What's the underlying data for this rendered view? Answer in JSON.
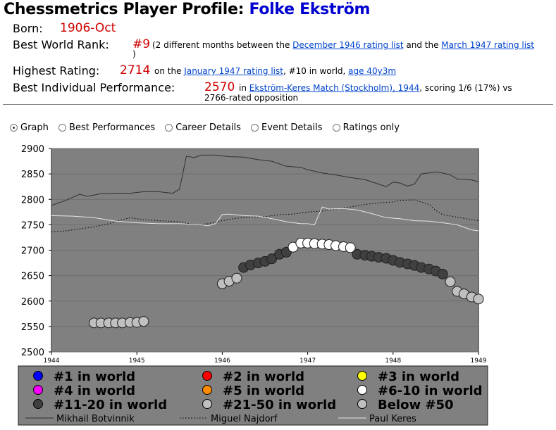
{
  "header": {
    "title_prefix": "Chessmetrics Player Profile: ",
    "player_name": "Folke Ekström"
  },
  "profile": {
    "born_label": "Born:",
    "born_value": "1906-Oct",
    "rank_label": "Best World Rank:",
    "rank_value": "#9",
    "rank_text1": "(2 different months between the",
    "rank_link1": "December 1946 rating list",
    "rank_text2": "and the",
    "rank_link2": "March 1947 rating list",
    "rank_close": ")",
    "rating_label": "Highest Rating:",
    "rating_value": "2714",
    "rating_text1": "on the",
    "rating_link1": "January 1947 rating list",
    "rating_text2": ", #10 in world,",
    "rating_link2": "age 40y3m",
    "perf_label": "Best Individual Performance:",
    "perf_value": "2570",
    "perf_text1": "in",
    "perf_link": "Ekström-Keres Match (Stockholm), 1944",
    "perf_text2": ", scoring 1/6 (17%) vs",
    "perf_text3": "2766-rated opposition"
  },
  "tabs": [
    {
      "label": "Graph",
      "selected": true
    },
    {
      "label": "Best Performances",
      "selected": false
    },
    {
      "label": "Career Details",
      "selected": false
    },
    {
      "label": "Event Details",
      "selected": false
    },
    {
      "label": "Ratings only",
      "selected": false
    }
  ],
  "colors": {
    "plot_bg": "#808080",
    "legend_bg": "#808080",
    "rank_1": "#0000ff",
    "rank_2": "#ff0000",
    "rank_3": "#ffff00",
    "rank_4": "#ff00ff",
    "rank_5": "#ff8c00",
    "rank_6_10": "#ffffff",
    "rank_11_20": "#404040",
    "rank_21_50": "#c0c0c0",
    "rank_below_50": "#c0c0c0"
  },
  "chart_data": {
    "type": "scatter",
    "xlim": [
      1944,
      1949
    ],
    "ylim": [
      2500,
      2900
    ],
    "x_ticks": [
      "1944",
      "1945",
      "1946",
      "1947",
      "1948",
      "1949"
    ],
    "y_ticks": [
      "2500",
      "2550",
      "2600",
      "2650",
      "2700",
      "2750",
      "2800",
      "2850",
      "2900"
    ],
    "grid": true,
    "points": [
      {
        "x": 1944.5,
        "y": 2557,
        "cls": "21-50"
      },
      {
        "x": 1944.58,
        "y": 2557,
        "cls": "21-50"
      },
      {
        "x": 1944.67,
        "y": 2557,
        "cls": "21-50"
      },
      {
        "x": 1944.75,
        "y": 2557,
        "cls": "21-50"
      },
      {
        "x": 1944.83,
        "y": 2557,
        "cls": "21-50"
      },
      {
        "x": 1944.92,
        "y": 2558,
        "cls": "21-50"
      },
      {
        "x": 1945.0,
        "y": 2558,
        "cls": "21-50"
      },
      {
        "x": 1945.08,
        "y": 2560,
        "cls": "21-50"
      },
      {
        "x": 1946.0,
        "y": 2634,
        "cls": "21-50"
      },
      {
        "x": 1946.08,
        "y": 2639,
        "cls": "21-50"
      },
      {
        "x": 1946.17,
        "y": 2645,
        "cls": "21-50"
      },
      {
        "x": 1946.25,
        "y": 2666,
        "cls": "11-20"
      },
      {
        "x": 1946.33,
        "y": 2671,
        "cls": "11-20"
      },
      {
        "x": 1946.42,
        "y": 2675,
        "cls": "11-20"
      },
      {
        "x": 1946.5,
        "y": 2678,
        "cls": "11-20"
      },
      {
        "x": 1946.58,
        "y": 2683,
        "cls": "11-20"
      },
      {
        "x": 1946.67,
        "y": 2692,
        "cls": "11-20"
      },
      {
        "x": 1946.75,
        "y": 2696,
        "cls": "11-20"
      },
      {
        "x": 1946.83,
        "y": 2706,
        "cls": "6-10"
      },
      {
        "x": 1946.92,
        "y": 2714,
        "cls": "6-10"
      },
      {
        "x": 1947.0,
        "y": 2714,
        "cls": "6-10"
      },
      {
        "x": 1947.08,
        "y": 2713,
        "cls": "6-10"
      },
      {
        "x": 1947.17,
        "y": 2712,
        "cls": "6-10"
      },
      {
        "x": 1947.25,
        "y": 2711,
        "cls": "6-10"
      },
      {
        "x": 1947.33,
        "y": 2709,
        "cls": "6-10"
      },
      {
        "x": 1947.42,
        "y": 2707,
        "cls": "6-10"
      },
      {
        "x": 1947.5,
        "y": 2705,
        "cls": "6-10"
      },
      {
        "x": 1947.58,
        "y": 2692,
        "cls": "11-20"
      },
      {
        "x": 1947.67,
        "y": 2690,
        "cls": "11-20"
      },
      {
        "x": 1947.75,
        "y": 2688,
        "cls": "11-20"
      },
      {
        "x": 1947.83,
        "y": 2686,
        "cls": "11-20"
      },
      {
        "x": 1947.92,
        "y": 2684,
        "cls": "11-20"
      },
      {
        "x": 1948.0,
        "y": 2680,
        "cls": "11-20"
      },
      {
        "x": 1948.08,
        "y": 2676,
        "cls": "11-20"
      },
      {
        "x": 1948.17,
        "y": 2673,
        "cls": "11-20"
      },
      {
        "x": 1948.25,
        "y": 2670,
        "cls": "11-20"
      },
      {
        "x": 1948.33,
        "y": 2666,
        "cls": "11-20"
      },
      {
        "x": 1948.42,
        "y": 2663,
        "cls": "11-20"
      },
      {
        "x": 1948.5,
        "y": 2659,
        "cls": "11-20"
      },
      {
        "x": 1948.58,
        "y": 2653,
        "cls": "11-20"
      },
      {
        "x": 1948.67,
        "y": 2638,
        "cls": "21-50"
      },
      {
        "x": 1948.75,
        "y": 2619,
        "cls": "21-50"
      },
      {
        "x": 1948.83,
        "y": 2614,
        "cls": "21-50"
      },
      {
        "x": 1948.92,
        "y": 2608,
        "cls": "21-50"
      },
      {
        "x": 1949.0,
        "y": 2604,
        "cls": "21-50"
      }
    ],
    "lines": [
      {
        "name": "Mikhail Botvinnik",
        "style": "solid",
        "color": "#303030",
        "points": [
          [
            1944.0,
            2788
          ],
          [
            1944.17,
            2798
          ],
          [
            1944.33,
            2810
          ],
          [
            1944.42,
            2806
          ],
          [
            1944.58,
            2811
          ],
          [
            1944.75,
            2812
          ],
          [
            1944.92,
            2812
          ],
          [
            1945.08,
            2815
          ],
          [
            1945.25,
            2815
          ],
          [
            1945.42,
            2812
          ],
          [
            1945.5,
            2820
          ],
          [
            1945.58,
            2885
          ],
          [
            1945.67,
            2882
          ],
          [
            1945.75,
            2887
          ],
          [
            1945.92,
            2887
          ],
          [
            1946.08,
            2884
          ],
          [
            1946.25,
            2883
          ],
          [
            1946.42,
            2878
          ],
          [
            1946.58,
            2875
          ],
          [
            1946.75,
            2865
          ],
          [
            1946.92,
            2863
          ],
          [
            1947.0,
            2858
          ],
          [
            1947.17,
            2852
          ],
          [
            1947.33,
            2848
          ],
          [
            1947.5,
            2843
          ],
          [
            1947.67,
            2839
          ],
          [
            1947.83,
            2830
          ],
          [
            1947.92,
            2825
          ],
          [
            1948.0,
            2834
          ],
          [
            1948.08,
            2832
          ],
          [
            1948.17,
            2826
          ],
          [
            1948.25,
            2830
          ],
          [
            1948.33,
            2850
          ],
          [
            1948.5,
            2854
          ],
          [
            1948.58,
            2852
          ],
          [
            1948.67,
            2848
          ],
          [
            1948.75,
            2840
          ],
          [
            1948.92,
            2838
          ],
          [
            1949.0,
            2835
          ]
        ]
      },
      {
        "name": "Miguel Najdorf",
        "style": "dotted",
        "color": "#000000",
        "points": [
          [
            1944.0,
            2736
          ],
          [
            1944.17,
            2738
          ],
          [
            1944.33,
            2742
          ],
          [
            1944.5,
            2746
          ],
          [
            1944.67,
            2752
          ],
          [
            1944.83,
            2760
          ],
          [
            1944.92,
            2764
          ],
          [
            1945.08,
            2760
          ],
          [
            1945.25,
            2758
          ],
          [
            1945.5,
            2756
          ],
          [
            1945.67,
            2750
          ],
          [
            1945.83,
            2752
          ],
          [
            1946.0,
            2758
          ],
          [
            1946.17,
            2763
          ],
          [
            1946.33,
            2765
          ],
          [
            1946.5,
            2766
          ],
          [
            1946.67,
            2770
          ],
          [
            1946.83,
            2771
          ],
          [
            1947.0,
            2775
          ],
          [
            1947.17,
            2777
          ],
          [
            1947.33,
            2781
          ],
          [
            1947.5,
            2785
          ],
          [
            1947.67,
            2790
          ],
          [
            1947.83,
            2793
          ],
          [
            1948.0,
            2795
          ],
          [
            1948.08,
            2798
          ],
          [
            1948.25,
            2799
          ],
          [
            1948.42,
            2790
          ],
          [
            1948.5,
            2778
          ],
          [
            1948.58,
            2770
          ],
          [
            1948.75,
            2765
          ],
          [
            1948.92,
            2760
          ],
          [
            1949.0,
            2758
          ]
        ]
      },
      {
        "name": "Paul Keres",
        "style": "solid",
        "color": "#e6e6e6",
        "points": [
          [
            1944.0,
            2768
          ],
          [
            1944.25,
            2767
          ],
          [
            1944.5,
            2764
          ],
          [
            1944.75,
            2757
          ],
          [
            1945.0,
            2754
          ],
          [
            1945.25,
            2752
          ],
          [
            1945.5,
            2752
          ],
          [
            1945.75,
            2750
          ],
          [
            1945.83,
            2748
          ],
          [
            1945.92,
            2752
          ],
          [
            1946.0,
            2770
          ],
          [
            1946.08,
            2771
          ],
          [
            1946.25,
            2768
          ],
          [
            1946.42,
            2767
          ],
          [
            1946.58,
            2762
          ],
          [
            1946.75,
            2756
          ],
          [
            1946.92,
            2752
          ],
          [
            1947.0,
            2752
          ],
          [
            1947.08,
            2750
          ],
          [
            1947.17,
            2785
          ],
          [
            1947.25,
            2781
          ],
          [
            1947.42,
            2782
          ],
          [
            1947.58,
            2779
          ],
          [
            1947.75,
            2772
          ],
          [
            1947.92,
            2764
          ],
          [
            1948.08,
            2762
          ],
          [
            1948.25,
            2758
          ],
          [
            1948.42,
            2757
          ],
          [
            1948.58,
            2754
          ],
          [
            1948.75,
            2750
          ],
          [
            1948.92,
            2740
          ],
          [
            1949.0,
            2738
          ]
        ]
      }
    ],
    "legend": [
      {
        "label": "#1 in world",
        "color_key": "rank_1"
      },
      {
        "label": "#2 in world",
        "color_key": "rank_2"
      },
      {
        "label": "#3 in world",
        "color_key": "rank_3"
      },
      {
        "label": "#4 in world",
        "color_key": "rank_4"
      },
      {
        "label": "#5 in world",
        "color_key": "rank_5"
      },
      {
        "label": "#6-10 in world",
        "color_key": "rank_6_10"
      },
      {
        "label": "#11-20 in world",
        "color_key": "rank_11_20"
      },
      {
        "label": "#21-50 in world",
        "color_key": "rank_21_50"
      },
      {
        "label": "Below #50",
        "color_key": "rank_below_50"
      }
    ],
    "line_legend": [
      "Mikhail Botvinnik",
      "Miguel Najdorf",
      "Paul Keres"
    ]
  }
}
